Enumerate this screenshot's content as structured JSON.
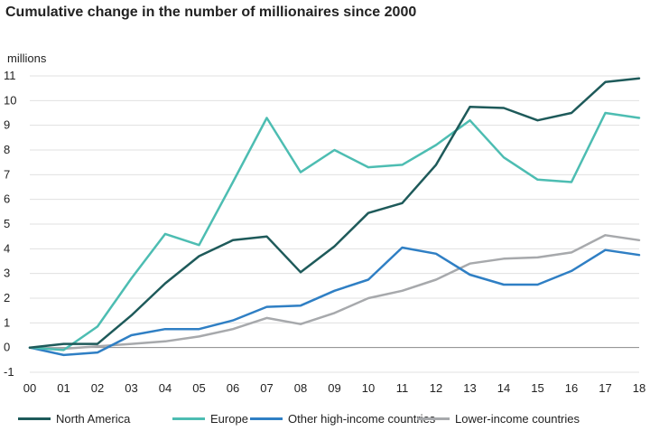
{
  "title": "Cumulative change in the number of millionaires since 2000",
  "chart_data": {
    "type": "line",
    "title": "Cumulative change in the number of millionaires since 2000",
    "ylabel": "millions",
    "xlabel": "",
    "ylim": [
      -1,
      11
    ],
    "yticks": [
      11,
      10,
      9,
      8,
      7,
      6,
      5,
      4,
      3,
      2,
      1,
      0,
      -1
    ],
    "categories": [
      "00",
      "01",
      "02",
      "03",
      "04",
      "05",
      "06",
      "07",
      "08",
      "09",
      "10",
      "11",
      "12",
      "13",
      "14",
      "15",
      "16",
      "17",
      "18"
    ],
    "grid": "horizontal",
    "legend_position": "bottom",
    "series": [
      {
        "name": "North America",
        "color": "#1e5a5a",
        "values": [
          0,
          0.15,
          0.15,
          1.3,
          2.6,
          3.7,
          4.35,
          4.5,
          3.05,
          4.1,
          5.45,
          5.85,
          7.4,
          9.75,
          9.7,
          9.2,
          9.5,
          10.75,
          10.9
        ]
      },
      {
        "name": "Europe",
        "color": "#4dbdb2",
        "values": [
          0,
          -0.1,
          0.85,
          2.8,
          4.6,
          4.15,
          6.7,
          9.3,
          7.1,
          8.0,
          7.3,
          7.4,
          8.2,
          9.2,
          7.7,
          6.8,
          6.7,
          9.5,
          9.3
        ]
      },
      {
        "name": "Other high-income countries",
        "color": "#2f7fc4",
        "values": [
          0,
          -0.3,
          -0.2,
          0.5,
          0.75,
          0.75,
          1.1,
          1.65,
          1.7,
          2.3,
          2.75,
          4.05,
          3.8,
          2.95,
          2.55,
          2.55,
          3.1,
          3.95,
          3.75
        ]
      },
      {
        "name": "Lower-income countries",
        "color": "#a7a9ac",
        "values": [
          0,
          -0.05,
          0.05,
          0.15,
          0.25,
          0.45,
          0.75,
          1.2,
          0.95,
          1.4,
          2.0,
          2.3,
          2.75,
          3.4,
          3.6,
          3.65,
          3.85,
          4.55,
          4.35
        ]
      }
    ]
  }
}
